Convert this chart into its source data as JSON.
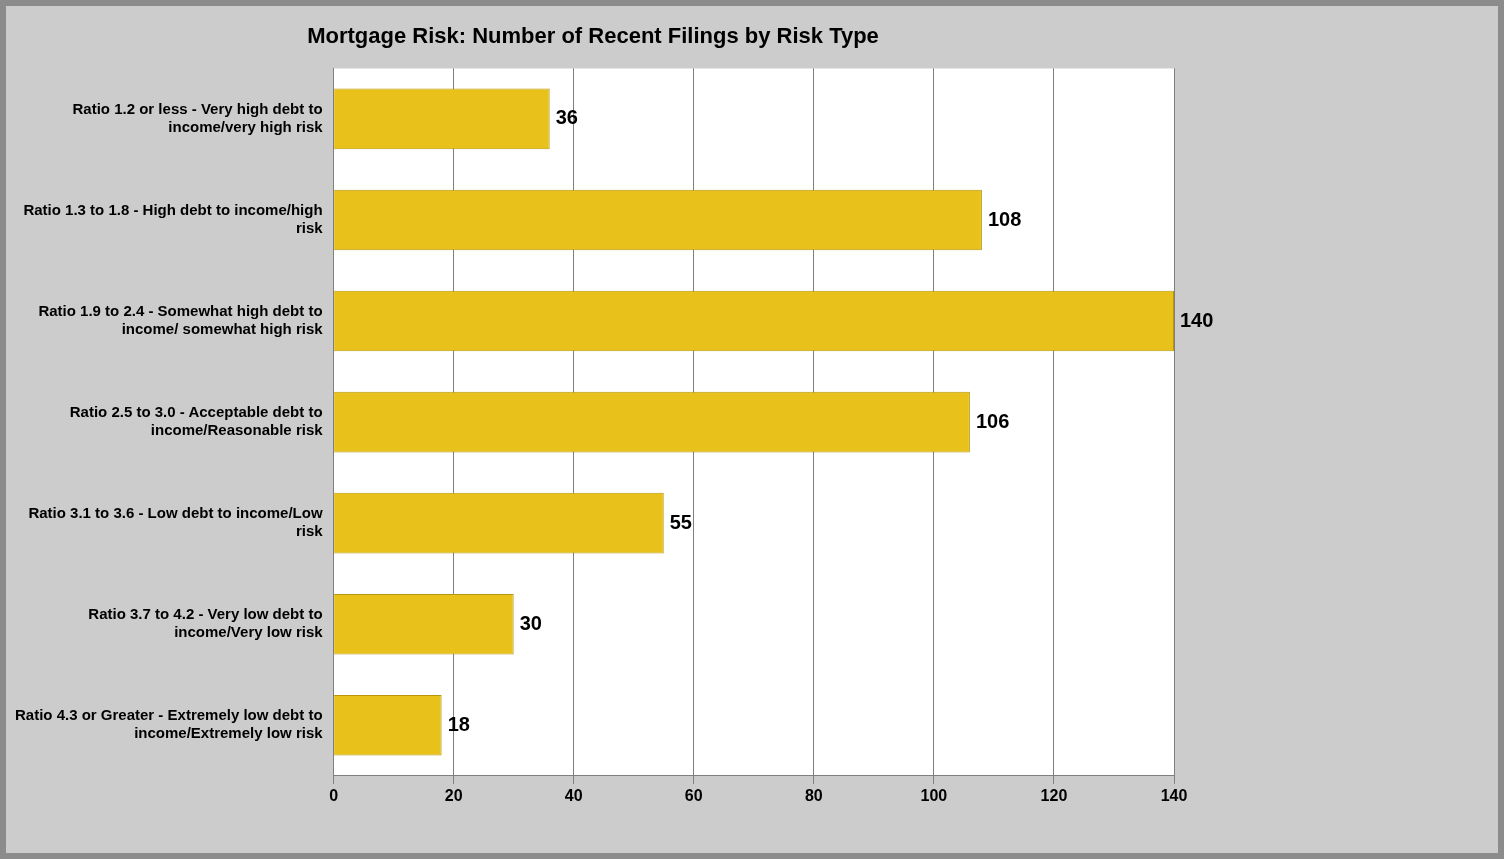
{
  "chart_data": {
    "type": "bar",
    "orientation": "horizontal",
    "title": "Mortgage Risk: Number of Recent Filings by Risk Type",
    "categories": [
      "Ratio 1.2 or less - Very high debt to income/very high risk",
      "Ratio 1.3 to 1.8 - High debt to income/high risk",
      "Ratio 1.9 to 2.4 - Somewhat high debt to income/ somewhat high risk",
      "Ratio 2.5 to 3.0 - Acceptable debt to income/Reasonable risk",
      "Ratio 3.1 to 3.6 - Low debt to income/Low risk",
      "Ratio 3.7 to 4.2 - Very low debt to income/Very low risk",
      "Ratio 4.3 or Greater - Extremely low debt to income/Extremely low risk"
    ],
    "values": [
      36,
      108,
      140,
      106,
      55,
      30,
      18
    ],
    "color": "#e8c21a",
    "xlim": [
      0,
      140
    ],
    "xticks": [
      0,
      20,
      40,
      60,
      80,
      100,
      120,
      140
    ],
    "grid": "x",
    "data_labels": true,
    "legend": false
  }
}
